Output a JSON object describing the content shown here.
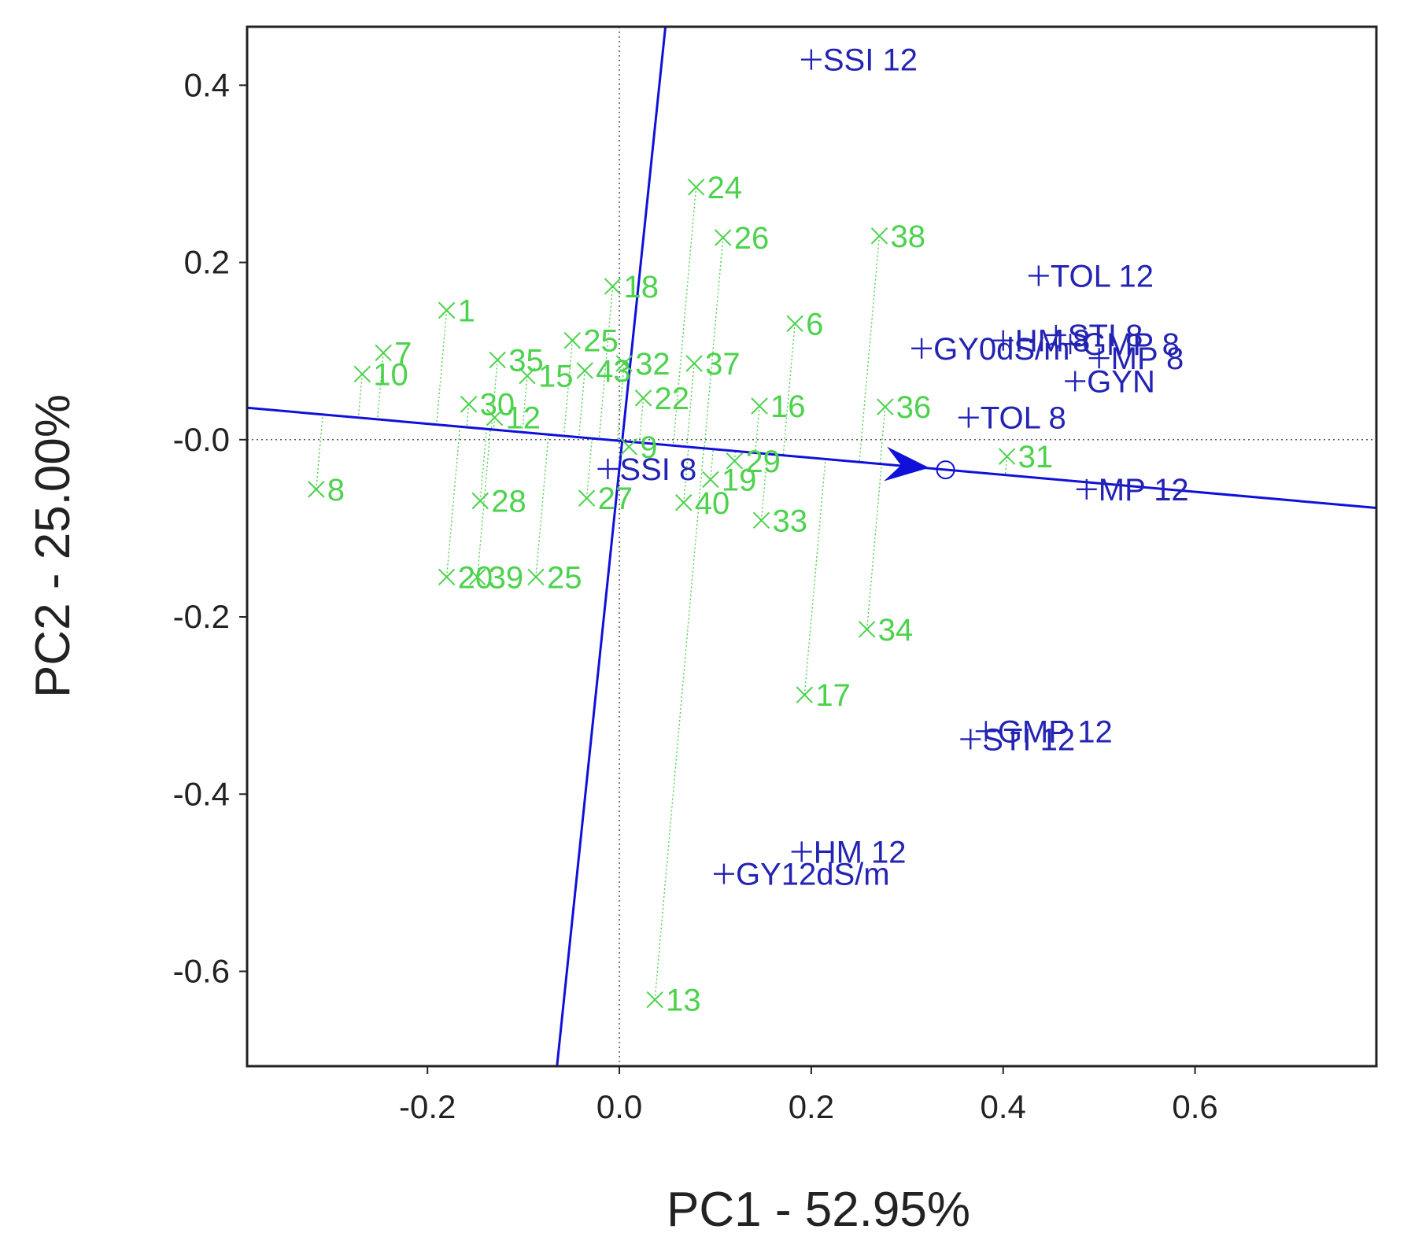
{
  "chart_data": {
    "type": "scatter",
    "title": "",
    "xlabel": "PC1 - 52.95%",
    "ylabel": "PC2 - 25.00%",
    "xlim": [
      -0.388,
      0.789
    ],
    "ylim": [
      -0.707,
      0.466
    ],
    "xticks": [
      {
        "value": -0.2,
        "label": "-0.2"
      },
      {
        "value": 0.0,
        "label": "0.0"
      },
      {
        "value": 0.2,
        "label": "0.2"
      },
      {
        "value": 0.4,
        "label": "0.4"
      },
      {
        "value": 0.6,
        "label": "0.6"
      }
    ],
    "yticks": [
      {
        "value": 0.4,
        "label": "0.4"
      },
      {
        "value": 0.2,
        "label": "0.2"
      },
      {
        "value": 0.0,
        "label": "-0.0"
      },
      {
        "value": -0.2,
        "label": "-0.2"
      },
      {
        "value": -0.4,
        "label": "-0.4"
      },
      {
        "value": -0.6,
        "label": "-0.6"
      }
    ],
    "colors": {
      "genotype": "#4cd24c",
      "trait": "#2323b4",
      "axis_line": "#1010d8",
      "frame": "#222222",
      "ref_line": "#555555"
    },
    "genotypes": [
      {
        "label": "1",
        "x": -0.18,
        "y": 0.146
      },
      {
        "label": "7",
        "x": -0.246,
        "y": 0.098
      },
      {
        "label": "10",
        "x": -0.268,
        "y": 0.074
      },
      {
        "label": "35",
        "x": -0.127,
        "y": 0.09
      },
      {
        "label": "15",
        "x": -0.096,
        "y": 0.072
      },
      {
        "label": "25",
        "x": -0.049,
        "y": 0.112
      },
      {
        "label": "43",
        "x": -0.036,
        "y": 0.078
      },
      {
        "label": "18",
        "x": -0.007,
        "y": 0.173
      },
      {
        "label": "32",
        "x": 0.005,
        "y": 0.086
      },
      {
        "label": "24",
        "x": 0.08,
        "y": 0.285
      },
      {
        "label": "26",
        "x": 0.108,
        "y": 0.228
      },
      {
        "label": "38",
        "x": 0.271,
        "y": 0.23
      },
      {
        "label": "6",
        "x": 0.183,
        "y": 0.131
      },
      {
        "label": "37",
        "x": 0.078,
        "y": 0.086
      },
      {
        "label": "22",
        "x": 0.025,
        "y": 0.047
      },
      {
        "label": "16",
        "x": 0.146,
        "y": 0.038
      },
      {
        "label": "36",
        "x": 0.277,
        "y": 0.037
      },
      {
        "label": "30",
        "x": -0.157,
        "y": 0.04
      },
      {
        "label": "12",
        "x": -0.13,
        "y": 0.025
      },
      {
        "label": "9",
        "x": 0.01,
        "y": -0.008
      },
      {
        "label": "29",
        "x": 0.12,
        "y": -0.024
      },
      {
        "label": "31",
        "x": 0.404,
        "y": -0.019
      },
      {
        "label": "8",
        "x": -0.316,
        "y": -0.056
      },
      {
        "label": "28",
        "x": -0.145,
        "y": -0.069
      },
      {
        "label": "27",
        "x": -0.034,
        "y": -0.066
      },
      {
        "label": "19",
        "x": 0.095,
        "y": -0.045
      },
      {
        "label": "40",
        "x": 0.067,
        "y": -0.071
      },
      {
        "label": "33",
        "x": 0.148,
        "y": -0.091
      },
      {
        "label": "20",
        "x": -0.18,
        "y": -0.155
      },
      {
        "label": "39",
        "x": -0.148,
        "y": -0.155
      },
      {
        "label": "25",
        "x": -0.087,
        "y": -0.155
      },
      {
        "label": "34",
        "x": 0.258,
        "y": -0.214
      },
      {
        "label": "17",
        "x": 0.193,
        "y": -0.288
      },
      {
        "label": "13",
        "x": 0.037,
        "y": -0.632
      }
    ],
    "traits": [
      {
        "label": "SSI 12",
        "x": 0.2,
        "y": 0.429
      },
      {
        "label": "TOL 12",
        "x": 0.437,
        "y": 0.185
      },
      {
        "label": "GY0dS/m",
        "x": 0.315,
        "y": 0.103
      },
      {
        "label": "HM 8",
        "x": 0.4,
        "y": 0.112
      },
      {
        "label": "STI 8",
        "x": 0.455,
        "y": 0.118
      },
      {
        "label": "GMP 8",
        "x": 0.47,
        "y": 0.108
      },
      {
        "label": "MP 8",
        "x": 0.5,
        "y": 0.092
      },
      {
        "label": "GYN",
        "x": 0.475,
        "y": 0.066
      },
      {
        "label": "TOL 8",
        "x": 0.364,
        "y": 0.025
      },
      {
        "label": "SSI 8",
        "x": -0.012,
        "y": -0.033
      },
      {
        "label": "MP 12",
        "x": 0.487,
        "y": -0.056
      },
      {
        "label": "GMP 12",
        "x": 0.382,
        "y": -0.329
      },
      {
        "label": "STI 12",
        "x": 0.366,
        "y": -0.338
      },
      {
        "label": "HM 12",
        "x": 0.19,
        "y": -0.465
      },
      {
        "label": "GY12dS/m",
        "x": 0.109,
        "y": -0.49
      }
    ],
    "ati_axis": {
      "from": [
        -0.388,
        0.036
      ],
      "to": [
        0.789,
        -0.077
      ],
      "arrow_at": [
        0.305,
        -0.03
      ],
      "circle_at": [
        0.34,
        -0.034
      ]
    },
    "ati_perpendicular": {
      "from": [
        -0.065,
        -0.707
      ],
      "to": [
        0.048,
        0.466
      ]
    }
  }
}
